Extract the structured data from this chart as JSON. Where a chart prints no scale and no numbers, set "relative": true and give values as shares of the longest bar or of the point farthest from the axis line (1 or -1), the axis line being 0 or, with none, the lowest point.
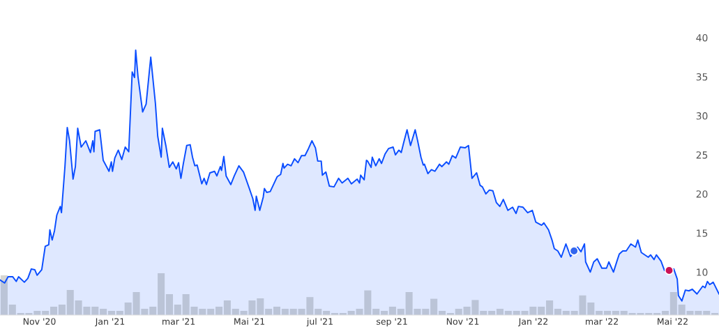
{
  "chart_data": [
    {
      "type": "area",
      "ylim": [
        4.5,
        40
      ],
      "yticks": [
        10,
        15,
        20,
        25,
        30,
        35,
        40
      ],
      "xlim": [
        "2020-09-28",
        "2022-06-10"
      ],
      "xticks": [
        {
          "value": "2020-11-01",
          "label": "Nov '20"
        },
        {
          "value": "2021-01-01",
          "label": "Jan '21"
        },
        {
          "value": "2021-03-01",
          "label": "mar '21"
        },
        {
          "value": "2021-05-01",
          "label": "Mai '21"
        },
        {
          "value": "2021-07-01",
          "label": "jul '21"
        },
        {
          "value": "2021-09-01",
          "label": "sep '21"
        },
        {
          "value": "2021-11-01",
          "label": "Nov '21"
        },
        {
          "value": "2022-01-01",
          "label": "Jan '22"
        },
        {
          "value": "2022-03-01",
          "label": "mar '22"
        },
        {
          "value": "2022-05-01",
          "label": "Mai '22"
        }
      ],
      "grid": false,
      "legend": false,
      "series": [
        {
          "type": "area",
          "color": "#0a4dff",
          "x": [
            "2020-09-28",
            "2020-10-02",
            "2020-10-05",
            "2020-10-09",
            "2020-10-12",
            "2020-10-14",
            "2020-10-19",
            "2020-10-22",
            "2020-10-25",
            "2020-10-28",
            "2020-10-30",
            "2020-11-03",
            "2020-11-06",
            "2020-11-09",
            "2020-11-10",
            "2020-11-12",
            "2020-11-14",
            "2020-11-16",
            "2020-11-19",
            "2020-11-20",
            "2020-11-23",
            "2020-11-25",
            "2020-11-27",
            "2020-11-30",
            "2020-12-02",
            "2020-12-04",
            "2020-12-07",
            "2020-12-11",
            "2020-12-15",
            "2020-12-17",
            "2020-12-18",
            "2020-12-19",
            "2020-12-23",
            "2020-12-26",
            "2020-12-31",
            "2021-01-02",
            "2021-01-03",
            "2021-01-05",
            "2021-01-08",
            "2021-01-11",
            "2021-01-14",
            "2021-01-17",
            "2021-01-20",
            "2021-01-22",
            "2021-01-23",
            "2021-01-25",
            "2021-01-29",
            "2021-02-01",
            "2021-02-05",
            "2021-02-09",
            "2021-02-11",
            "2021-02-14",
            "2021-02-15",
            "2021-02-18",
            "2021-02-21",
            "2021-02-24",
            "2021-02-27",
            "2021-03-01",
            "2021-03-03",
            "2021-03-05",
            "2021-03-08",
            "2021-03-11",
            "2021-03-13",
            "2021-03-15",
            "2021-03-17",
            "2021-03-21",
            "2021-03-23",
            "2021-03-25",
            "2021-03-28",
            "2021-04-01",
            "2021-04-03",
            "2021-04-06",
            "2021-04-07",
            "2021-04-09",
            "2021-04-11",
            "2021-04-15",
            "2021-04-18",
            "2021-04-22",
            "2021-04-26",
            "2021-05-01",
            "2021-05-04",
            "2021-05-06",
            "2021-05-07",
            "2021-05-10",
            "2021-05-13",
            "2021-05-14",
            "2021-05-16",
            "2021-05-19",
            "2021-05-25",
            "2021-05-28",
            "2021-05-30",
            "2021-05-31",
            "2021-06-03",
            "2021-06-06",
            "2021-06-09",
            "2021-06-12",
            "2021-06-15",
            "2021-06-18",
            "2021-06-21",
            "2021-06-24",
            "2021-06-27",
            "2021-06-29",
            "2021-07-02",
            "2021-07-03",
            "2021-07-06",
            "2021-07-09",
            "2021-07-13",
            "2021-07-17",
            "2021-07-20",
            "2021-07-25",
            "2021-07-28",
            "2021-08-02",
            "2021-08-04",
            "2021-08-05",
            "2021-08-08",
            "2021-08-10",
            "2021-08-11",
            "2021-08-14",
            "2021-08-15",
            "2021-08-18",
            "2021-08-21",
            "2021-08-23",
            "2021-08-26",
            "2021-08-29",
            "2021-09-02",
            "2021-09-04",
            "2021-09-07",
            "2021-09-09",
            "2021-09-11",
            "2021-09-14",
            "2021-09-17",
            "2021-09-21",
            "2021-09-23",
            "2021-09-26",
            "2021-09-28",
            "2021-09-29",
            "2021-10-02",
            "2021-10-05",
            "2021-10-08",
            "2021-10-12",
            "2021-10-14",
            "2021-10-18",
            "2021-10-20",
            "2021-10-23",
            "2021-10-26",
            "2021-10-30",
            "2021-11-03",
            "2021-11-06",
            "2021-11-09",
            "2021-11-13",
            "2021-11-16",
            "2021-11-18",
            "2021-11-21",
            "2021-11-24",
            "2021-11-27",
            "2021-11-30",
            "2021-12-03",
            "2021-12-06",
            "2021-12-10",
            "2021-12-14",
            "2021-12-17",
            "2021-12-19",
            "2021-12-23",
            "2021-12-27",
            "2021-12-31",
            "2022-01-03",
            "2022-01-08",
            "2022-01-10",
            "2022-01-14",
            "2022-01-17",
            "2022-01-19",
            "2022-01-22",
            "2022-01-25",
            "2022-01-29",
            "2022-02-02",
            "2022-02-08",
            "2022-02-11",
            "2022-02-14",
            "2022-02-15",
            "2022-02-19",
            "2022-02-22",
            "2022-02-25",
            "2022-03-01",
            "2022-03-05",
            "2022-03-07",
            "2022-03-11",
            "2022-03-14",
            "2022-03-16",
            "2022-03-19",
            "2022-03-22",
            "2022-03-26",
            "2022-03-30",
            "2022-04-01",
            "2022-04-04",
            "2022-04-10",
            "2022-04-12",
            "2022-04-15",
            "2022-04-17",
            "2022-04-21",
            "2022-04-24",
            "2022-05-02",
            "2022-05-05",
            "2022-05-06",
            "2022-05-09",
            "2022-05-12",
            "2022-05-15",
            "2022-05-18",
            "2022-05-22",
            "2022-05-27",
            "2022-05-29",
            "2022-05-31",
            "2022-06-02",
            "2022-06-05",
            "2022-06-10"
          ],
          "values": [
            9.0,
            8.6,
            9.4,
            9.4,
            8.8,
            9.4,
            8.7,
            9.2,
            10.4,
            10.3,
            9.6,
            10.3,
            13.3,
            13.5,
            15.4,
            14.1,
            15.3,
            17.3,
            18.4,
            17.6,
            23.5,
            28.5,
            26.8,
            21.9,
            23.5,
            28.4,
            26.0,
            26.8,
            25.3,
            26.8,
            25.4,
            28.0,
            28.2,
            24.3,
            22.9,
            24.1,
            22.9,
            24.6,
            25.6,
            24.4,
            26.0,
            25.4,
            35.6,
            34.9,
            38.4,
            35.0,
            30.5,
            31.5,
            37.5,
            31.6,
            27.4,
            24.7,
            28.4,
            26.2,
            23.4,
            24.1,
            23.2,
            24.0,
            22.0,
            23.8,
            26.2,
            26.3,
            24.7,
            23.6,
            23.7,
            21.3,
            22.0,
            21.2,
            22.7,
            22.9,
            22.3,
            23.5,
            23.0,
            24.8,
            22.3,
            21.2,
            22.3,
            23.6,
            22.8,
            20.7,
            19.4,
            17.9,
            19.7,
            17.9,
            19.6,
            20.7,
            20.2,
            20.3,
            22.2,
            22.5,
            23.9,
            23.3,
            23.8,
            23.6,
            24.5,
            24.0,
            24.9,
            24.9,
            25.8,
            26.8,
            25.9,
            24.2,
            24.2,
            22.4,
            22.8,
            21.0,
            20.9,
            22.0,
            21.4,
            22.0,
            21.3,
            21.9,
            21.4,
            22.4,
            21.8,
            24.3,
            24.2,
            23.4,
            24.7,
            23.6,
            24.5,
            23.9,
            25.1,
            25.8,
            26.0,
            25.0,
            25.6,
            25.3,
            26.5,
            28.2,
            26.2,
            28.2,
            26.9,
            24.7,
            23.7,
            23.8,
            22.6,
            23.1,
            22.9,
            23.8,
            23.5,
            24.1,
            23.8,
            24.9,
            24.6,
            26.0,
            25.9,
            26.2,
            22.0,
            22.7,
            21.1,
            20.9,
            20.0,
            20.5,
            20.4,
            18.9,
            18.4,
            19.3,
            17.9,
            18.3,
            17.5,
            18.4,
            18.3,
            17.6,
            17.9,
            16.4,
            16.0,
            16.3,
            15.4,
            14.1,
            13.0,
            12.7,
            11.9,
            13.6,
            12.0,
            13.2,
            12.6,
            13.6,
            11.3,
            10.0,
            11.3,
            11.7,
            10.5,
            10.5,
            11.3,
            10.0,
            11.4,
            12.3,
            12.7,
            12.7,
            13.6,
            13.2,
            14.1,
            12.5,
            11.9,
            12.2,
            11.6,
            12.2,
            11.4,
            10.2,
            10.4,
            9.1,
            7.0,
            6.3,
            7.7,
            7.6,
            7.8,
            7.2,
            8.2,
            8.0,
            8.8,
            8.4,
            8.7,
            7.2
          ]
        },
        {
          "type": "scatter",
          "x": [
            "2022-02-05",
            "2022-04-28"
          ],
          "values": [
            12.7,
            10.2
          ],
          "colors": [
            "#3366ee",
            "#cc1155"
          ],
          "marker": "circle"
        }
      ]
    },
    {
      "type": "bar",
      "relative": true,
      "color": "#d6d6d2",
      "categories": [
        null,
        null,
        null,
        null,
        null,
        null,
        null,
        null,
        null,
        null,
        null,
        null,
        null,
        null,
        null,
        null,
        null,
        null,
        null,
        null,
        null,
        null,
        null,
        null,
        null,
        null,
        null,
        null,
        null,
        null,
        null,
        null,
        null,
        null,
        null,
        null,
        null,
        null,
        null,
        null,
        null,
        null,
        null,
        null,
        null,
        null,
        null,
        null,
        null,
        null,
        null,
        null,
        null,
        null,
        null,
        null,
        null,
        null,
        null,
        null,
        null,
        null,
        null,
        null,
        null,
        null,
        null,
        null,
        null,
        null,
        null,
        null,
        null,
        null,
        null,
        null,
        null,
        null,
        null,
        null,
        null,
        null,
        null,
        null,
        null,
        null,
        null
      ],
      "values": [
        0.95,
        0.25,
        0.05,
        0.05,
        0.1,
        0.1,
        0.2,
        0.25,
        0.6,
        0.35,
        0.2,
        0.2,
        0.15,
        0.1,
        0.1,
        0.3,
        0.55,
        0.15,
        0.2,
        1.0,
        0.5,
        0.25,
        0.5,
        0.2,
        0.15,
        0.15,
        0.2,
        0.35,
        0.15,
        0.1,
        0.35,
        0.4,
        0.15,
        0.2,
        0.15,
        0.15,
        0.15,
        0.43,
        0.15,
        0.1,
        0.05,
        0.05,
        0.1,
        0.15,
        0.59,
        0.15,
        0.1,
        0.2,
        0.15,
        0.55,
        0.15,
        0.15,
        0.39,
        0.1,
        0.05,
        0.15,
        0.2,
        0.36,
        0.1,
        0.1,
        0.15,
        0.1,
        0.1,
        0.1,
        0.2,
        0.2,
        0.35,
        0.15,
        0.1,
        0.1,
        0.47,
        0.3,
        0.1,
        0.1,
        0.1,
        0.1,
        0.05,
        0.05,
        0.05,
        0.05,
        0.1,
        0.55,
        0.25,
        0.1,
        0.1,
        0.1,
        0.05
      ]
    }
  ]
}
